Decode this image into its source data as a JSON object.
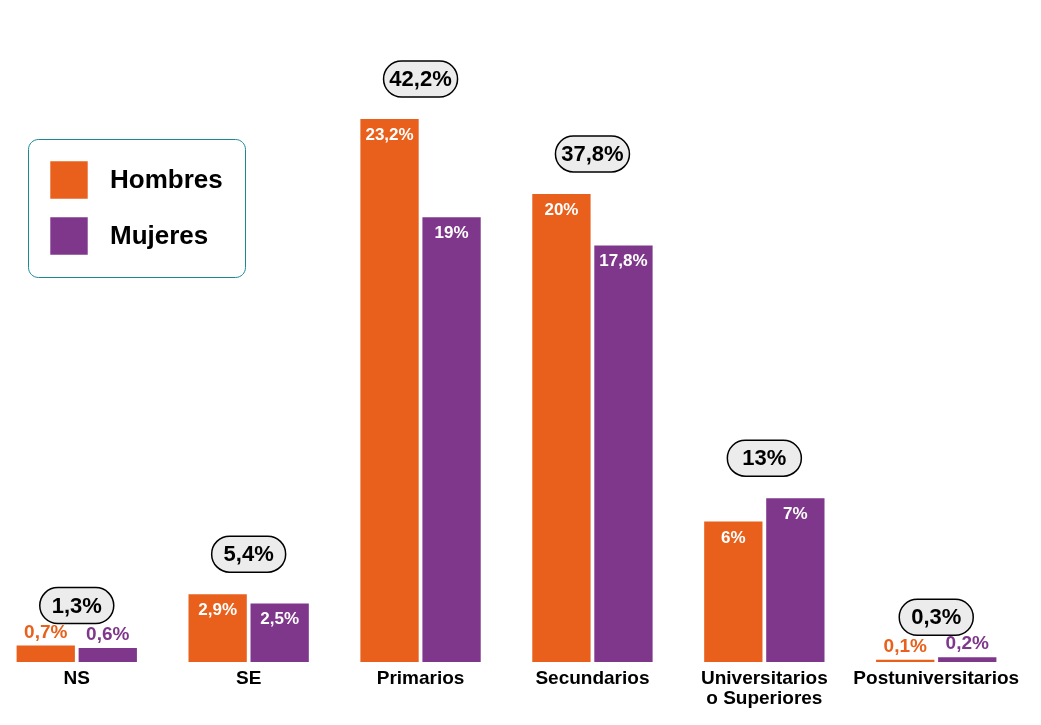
{
  "chart_data": {
    "type": "bar",
    "categories": [
      "NS",
      "SE",
      "Primarios",
      "Secundarios",
      "Universitarios o Superiores",
      "Postuniversitarios"
    ],
    "series": [
      {
        "name": "Hombres",
        "color": "#e8601c",
        "values": [
          0.7,
          2.9,
          23.2,
          20,
          6,
          0.1
        ],
        "value_labels": [
          "0,7%",
          "2,9%",
          "23,2%",
          "20%",
          "6%",
          "0,1%"
        ]
      },
      {
        "name": "Mujeres",
        "color": "#7e378b",
        "values": [
          0.6,
          2.5,
          19,
          17.8,
          7,
          0.2
        ],
        "value_labels": [
          "0,6%",
          "2,5%",
          "19%",
          "17,8%",
          "7%",
          "0,2%"
        ]
      }
    ],
    "totals": [
      "1,3%",
      "5,4%",
      "42,2%",
      "37,8%",
      "13%",
      "0,3%"
    ],
    "legend": "top left",
    "grid": false
  }
}
